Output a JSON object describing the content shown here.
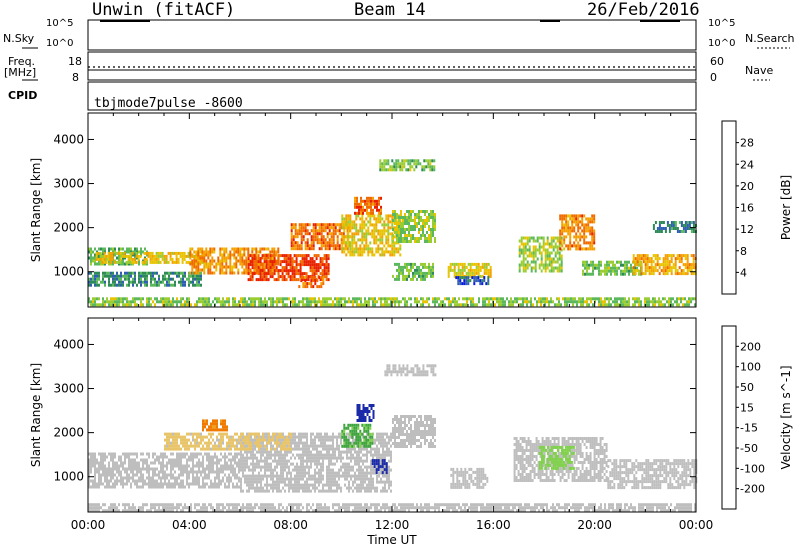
{
  "header": {
    "station": "Unwin (fitACF)",
    "beam": "Beam 14",
    "date": "26/Feb/2016"
  },
  "panels": {
    "sky_search": {
      "left_label": "N.Sky",
      "right_label": "N.Search",
      "left_ticks": [
        "10^5",
        "10^0"
      ],
      "right_ticks": [
        "10^5",
        "10^0"
      ]
    },
    "freq_nave": {
      "left_label_line1": "Freq.",
      "left_label_line2": "[MHz]",
      "right_label": "Nave",
      "left_ticks": [
        "18",
        "8"
      ],
      "right_ticks": [
        "60",
        "0"
      ]
    },
    "cpid": {
      "label": "CPID",
      "value": "tbjmode7pulse  -8600"
    }
  },
  "colors": {
    "power_scale": [
      "#0a19e6",
      "#2f5fb0",
      "#2e8b57",
      "#5cb85c",
      "#9acd32",
      "#e8c300",
      "#f5a000",
      "#f06a00",
      "#e82000"
    ],
    "velocity_scale": [
      "#e61a1a",
      "#f07a00",
      "#f0a020",
      "#e8c56a",
      "#bebebe",
      "#7fd24a",
      "#3ea53e",
      "#2a7a5a",
      "#1a2aa8"
    ],
    "ground_scatter": "#bebebe"
  },
  "chart_data": [
    {
      "type": "heatmap",
      "title": "",
      "xlabel": "Time UT",
      "ylabel": "Slant Range [km]",
      "x_ticks": [
        "00:00",
        "04:00",
        "08:00",
        "12:00",
        "16:00",
        "20:00",
        "00:00"
      ],
      "xlim": [
        0,
        24
      ],
      "ylim": [
        200,
        4600
      ],
      "y_ticks": [
        1000,
        2000,
        3000,
        4000
      ],
      "colorbar": {
        "label": "Power [dB]",
        "ticks": [
          4,
          8,
          12,
          16,
          20,
          24,
          28
        ],
        "range": [
          0,
          32
        ]
      },
      "regions": [
        {
          "t0": 0.0,
          "t1": 2.3,
          "r0": 1150,
          "r1": 1550,
          "v": 12
        },
        {
          "t0": 0.3,
          "t1": 4.5,
          "r0": 1200,
          "r1": 1450,
          "v": 20
        },
        {
          "t0": 0.0,
          "t1": 4.5,
          "r0": 700,
          "r1": 1000,
          "v": 9
        },
        {
          "t0": 4.0,
          "t1": 7.5,
          "r0": 950,
          "r1": 1550,
          "v": 24
        },
        {
          "t0": 6.3,
          "t1": 9.5,
          "r0": 850,
          "r1": 1400,
          "v": 29
        },
        {
          "t0": 8.0,
          "t1": 10.3,
          "r0": 1500,
          "r1": 2100,
          "v": 26
        },
        {
          "t0": 8.3,
          "t1": 9.3,
          "r0": 650,
          "r1": 900,
          "v": 27
        },
        {
          "t0": 10.0,
          "t1": 12.3,
          "r0": 1400,
          "r1": 2300,
          "v": 20
        },
        {
          "t0": 10.5,
          "t1": 11.6,
          "r0": 2350,
          "r1": 2700,
          "v": 27
        },
        {
          "t0": 12.0,
          "t1": 13.7,
          "r0": 1700,
          "r1": 2400,
          "v": 15
        },
        {
          "t0": 11.5,
          "t1": 13.7,
          "r0": 3300,
          "r1": 3550,
          "v": 14
        },
        {
          "t0": 12.0,
          "t1": 13.6,
          "r0": 800,
          "r1": 1200,
          "v": 14
        },
        {
          "t0": 14.2,
          "t1": 15.9,
          "r0": 900,
          "r1": 1200,
          "v": 19
        },
        {
          "t0": 14.5,
          "t1": 15.8,
          "r0": 700,
          "r1": 900,
          "v": 6
        },
        {
          "t0": 17.0,
          "t1": 18.7,
          "r0": 1000,
          "r1": 1800,
          "v": 16
        },
        {
          "t0": 18.6,
          "t1": 20.0,
          "r0": 1500,
          "r1": 2300,
          "v": 25
        },
        {
          "t0": 19.5,
          "t1": 21.8,
          "r0": 950,
          "r1": 1250,
          "v": 14
        },
        {
          "t0": 21.5,
          "t1": 24.0,
          "r0": 950,
          "r1": 1400,
          "v": 22
        },
        {
          "t0": 22.3,
          "t1": 24.0,
          "r0": 1900,
          "r1": 2150,
          "v": 8
        },
        {
          "t0": 0.0,
          "t1": 24.0,
          "r0": 250,
          "r1": 420,
          "v": 15
        }
      ]
    },
    {
      "type": "heatmap",
      "title": "",
      "xlabel": "Time UT",
      "ylabel": "Slant Range [km]",
      "x_ticks": [
        "00:00",
        "04:00",
        "08:00",
        "12:00",
        "16:00",
        "20:00",
        "00:00"
      ],
      "xlim": [
        0,
        24
      ],
      "ylim": [
        200,
        4600
      ],
      "y_ticks": [
        1000,
        2000,
        3000,
        4000
      ],
      "colorbar": {
        "label": "Velocity [m s^-1]",
        "ticks": [
          200,
          100,
          50,
          15,
          -15,
          -50,
          -100,
          -200
        ],
        "range": [
          -250,
          250
        ]
      },
      "regions": [
        {
          "t0": 0.0,
          "t1": 6.0,
          "r0": 750,
          "r1": 1550,
          "v": 0
        },
        {
          "t0": 6.0,
          "t1": 12.0,
          "r0": 700,
          "r1": 2000,
          "v": 0
        },
        {
          "t0": 3.0,
          "t1": 8.0,
          "r0": 1650,
          "r1": 2000,
          "v": -40
        },
        {
          "t0": 4.5,
          "t1": 5.5,
          "r0": 2050,
          "r1": 2300,
          "v": -150
        },
        {
          "t0": 10.0,
          "t1": 11.2,
          "r0": 1700,
          "r1": 2200,
          "v": 90
        },
        {
          "t0": 10.6,
          "t1": 11.3,
          "r0": 2300,
          "r1": 2650,
          "v": 210
        },
        {
          "t0": 11.2,
          "t1": 11.8,
          "r0": 1100,
          "r1": 1400,
          "v": 220
        },
        {
          "t0": 12.0,
          "t1": 13.7,
          "r0": 1700,
          "r1": 2400,
          "v": 0
        },
        {
          "t0": 11.7,
          "t1": 13.7,
          "r0": 3300,
          "r1": 3550,
          "v": 0
        },
        {
          "t0": 14.3,
          "t1": 15.8,
          "r0": 750,
          "r1": 1200,
          "v": 0
        },
        {
          "t0": 16.8,
          "t1": 20.5,
          "r0": 900,
          "r1": 1900,
          "v": 0
        },
        {
          "t0": 17.8,
          "t1": 19.2,
          "r0": 1200,
          "r1": 1700,
          "v": 40
        },
        {
          "t0": 20.5,
          "t1": 24.0,
          "r0": 750,
          "r1": 1400,
          "v": 0
        },
        {
          "t0": 0.0,
          "t1": 24.0,
          "r0": 250,
          "r1": 400,
          "v": 0
        }
      ]
    }
  ]
}
